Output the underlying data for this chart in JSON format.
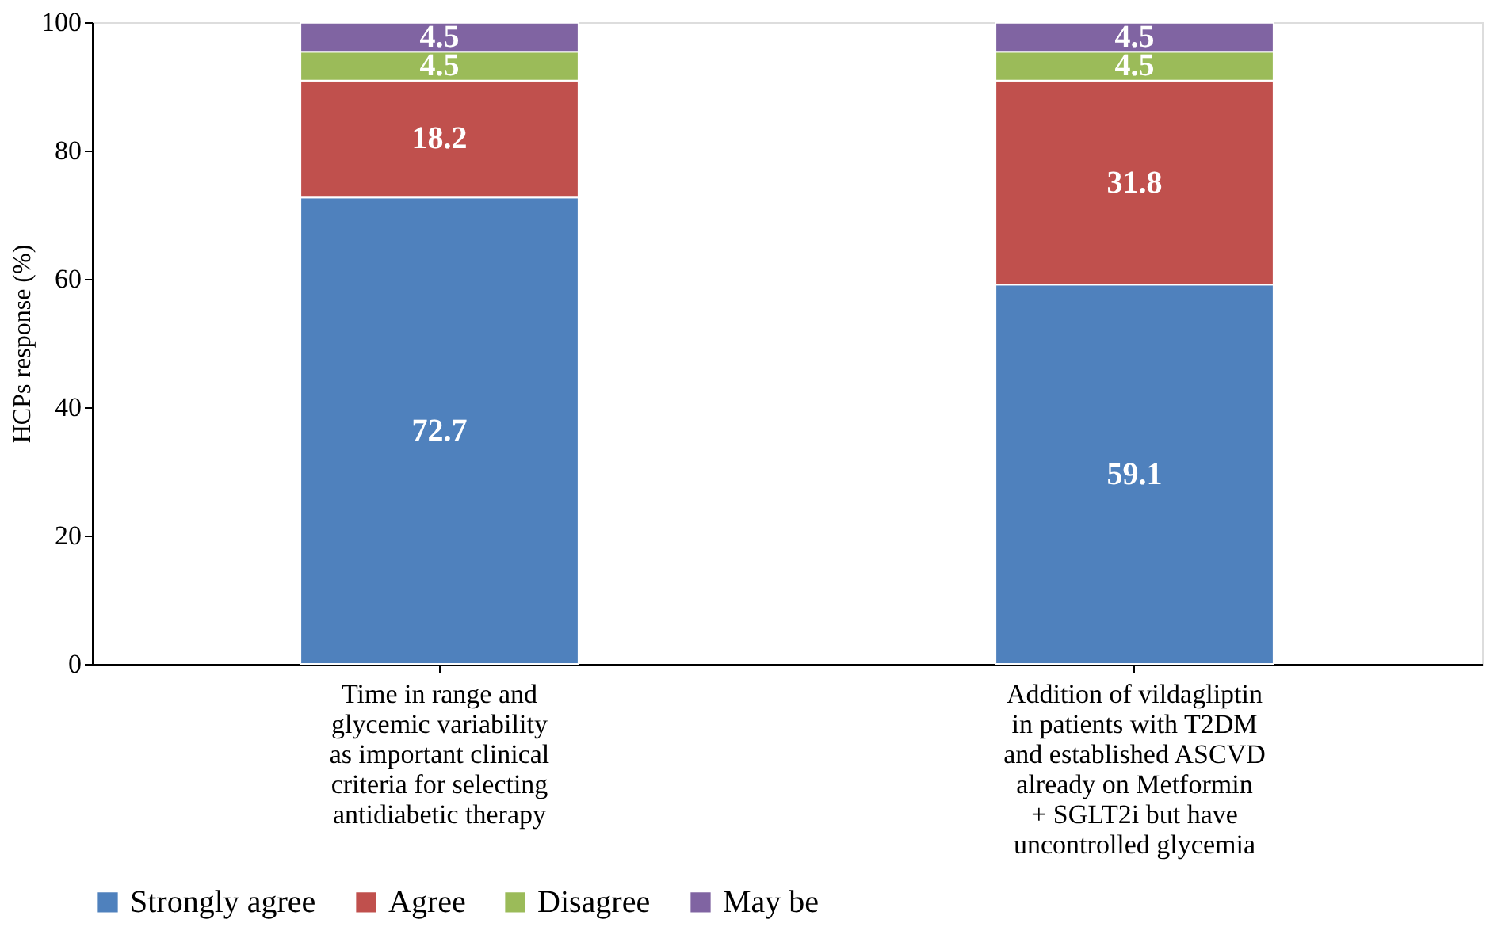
{
  "chart_data": {
    "type": "bar",
    "stacked": true,
    "ylabel": "HCPs response  (%)",
    "categories": [
      "Time in range and\nglycemic variability\nas important clinical\ncriteria for selecting\nantidiabetic therapy",
      "Addition of vildagliptin\nin patients with T2DM\nand established ASCVD\nalready on Metformin\n+ SGLT2i but have\nuncontrolled glycemia"
    ],
    "series": [
      {
        "name": "Strongly agree",
        "color": "#4f81bd",
        "values": [
          72.7,
          59.1
        ]
      },
      {
        "name": "Agree",
        "color": "#c0504d",
        "values": [
          18.2,
          31.8
        ]
      },
      {
        "name": "Disagree",
        "color": "#9bbb59",
        "values": [
          4.5,
          4.5
        ]
      },
      {
        "name": "May be",
        "color": "#8064a2",
        "values": [
          4.5,
          4.5
        ]
      }
    ],
    "ylim": [
      0,
      100
    ],
    "yticks": [
      0,
      20,
      40,
      60,
      80,
      100
    ],
    "grid": false,
    "legend": "bottom",
    "data_labels": true
  }
}
